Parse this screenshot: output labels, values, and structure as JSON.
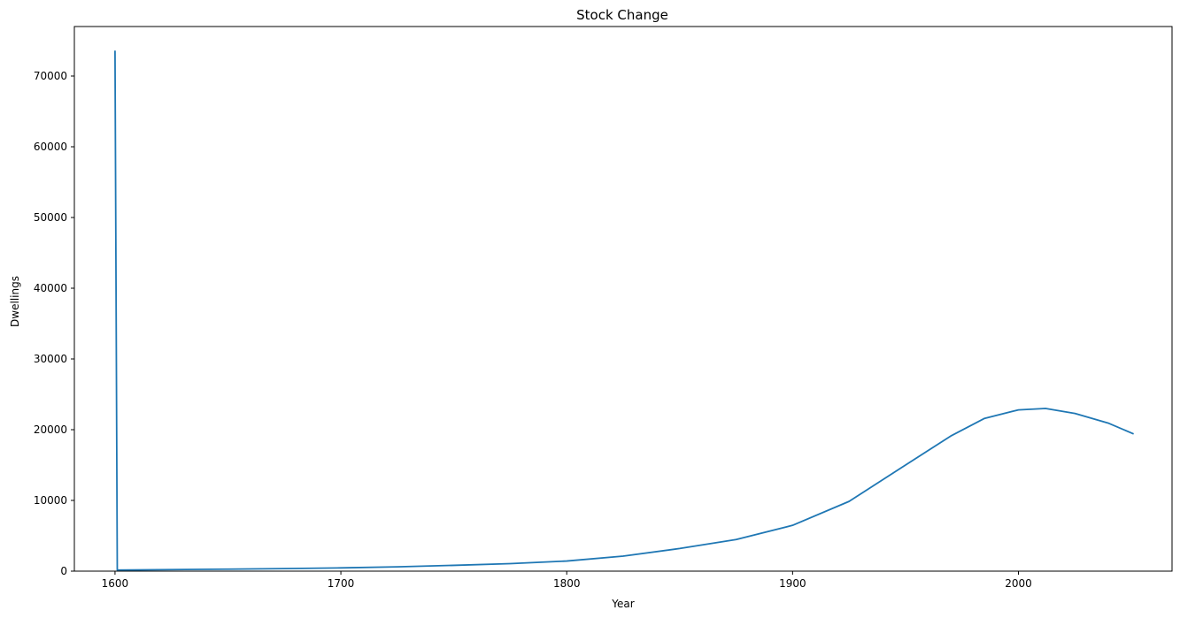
{
  "chart_data": {
    "type": "line",
    "title": "Stock Change",
    "xlabel": "Year",
    "ylabel": "Dwellings",
    "xlim": [
      1582,
      2068
    ],
    "ylim": [
      0,
      77000
    ],
    "x_ticks": [
      1600,
      1700,
      1800,
      1900,
      2000
    ],
    "y_ticks": [
      0,
      10000,
      20000,
      30000,
      40000,
      50000,
      60000,
      70000
    ],
    "grid": false,
    "series": [
      {
        "color": "#1f77b4",
        "x": [
          1600,
          1601,
          1625,
          1650,
          1675,
          1700,
          1725,
          1750,
          1775,
          1800,
          1825,
          1850,
          1875,
          1900,
          1925,
          1950,
          1970,
          1985,
          2000,
          2012,
          2025,
          2040,
          2051
        ],
        "y": [
          73600,
          150,
          220,
          280,
          360,
          460,
          610,
          820,
          1060,
          1430,
          2130,
          3200,
          4470,
          6480,
          9860,
          15000,
          19100,
          21600,
          22800,
          23000,
          22300,
          20900,
          19400
        ]
      }
    ]
  }
}
